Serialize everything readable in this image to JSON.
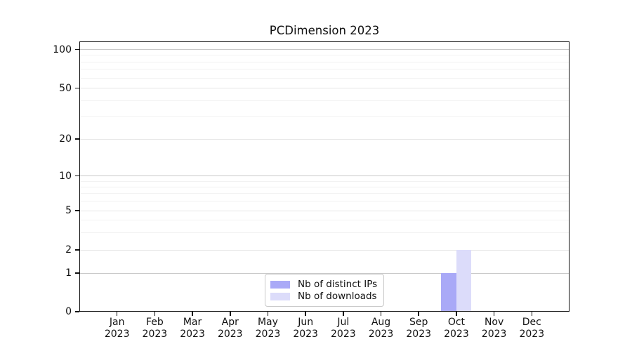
{
  "title": "PCDimension 2023",
  "colors": {
    "distinct_ips": "#a9a9f7",
    "downloads": "#dcdcfa",
    "grid_decade": "#c9c9c9",
    "grid_major": "#e6e6e6",
    "grid_minor": "#f2f2f2",
    "spine": "#111111"
  },
  "legend": {
    "items": [
      {
        "label": "Nb of distinct IPs",
        "series_key": "distinct_ips"
      },
      {
        "label": "Nb of downloads",
        "series_key": "downloads"
      }
    ]
  },
  "chart_data": {
    "type": "bar",
    "title": "PCDimension 2023",
    "categories": [
      "Jan 2023",
      "Feb 2023",
      "Mar 2023",
      "Apr 2023",
      "May 2023",
      "Jun 2023",
      "Jul 2023",
      "Aug 2023",
      "Sep 2023",
      "Oct 2023",
      "Nov 2023",
      "Dec 2023"
    ],
    "series": [
      {
        "name": "Nb of distinct IPs",
        "color": "#a9a9f7",
        "values": [
          0,
          0,
          0,
          0,
          0,
          0,
          0,
          0,
          0,
          1,
          0,
          0
        ]
      },
      {
        "name": "Nb of downloads",
        "color": "#dcdcfa",
        "values": [
          0,
          0,
          0,
          0,
          0,
          0,
          0,
          0,
          0,
          2,
          0,
          0
        ]
      }
    ],
    "xlabel": "",
    "ylabel": "",
    "y_axis": {
      "scale": "log-like",
      "ticks": [
        0,
        1,
        2,
        5,
        10,
        20,
        50,
        100
      ],
      "decade_ticks": [
        1,
        10,
        100
      ],
      "minor_ticks": [
        3,
        4,
        6,
        7,
        8,
        9,
        30,
        40,
        60,
        70,
        80,
        90
      ],
      "range": [
        0,
        120
      ]
    },
    "grid": true,
    "legend_position": "inside lower-center"
  }
}
